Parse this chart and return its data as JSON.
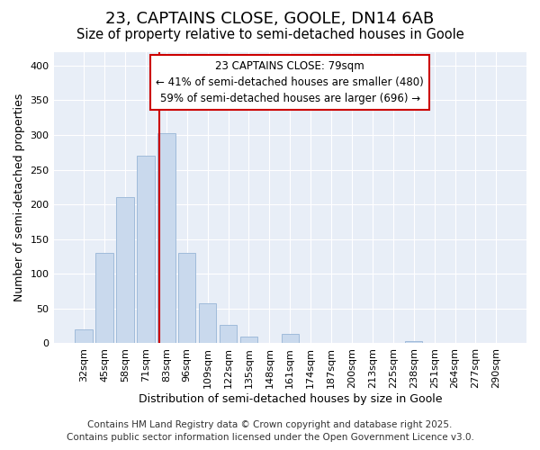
{
  "title": "23, CAPTAINS CLOSE, GOOLE, DN14 6AB",
  "subtitle": "Size of property relative to semi-detached houses in Goole",
  "xlabel": "Distribution of semi-detached houses by size in Goole",
  "ylabel": "Number of semi-detached properties",
  "categories": [
    "32sqm",
    "45sqm",
    "58sqm",
    "71sqm",
    "83sqm",
    "96sqm",
    "109sqm",
    "122sqm",
    "135sqm",
    "148sqm",
    "161sqm",
    "174sqm",
    "187sqm",
    "200sqm",
    "213sqm",
    "225sqm",
    "238sqm",
    "251sqm",
    "264sqm",
    "277sqm",
    "290sqm"
  ],
  "values": [
    20,
    130,
    210,
    270,
    303,
    130,
    57,
    27,
    10,
    0,
    13,
    0,
    0,
    0,
    0,
    0,
    3,
    0,
    0,
    0,
    0
  ],
  "bar_color": "#c9d9ed",
  "bar_edge_color": "#a0bbda",
  "vline_color": "#cc0000",
  "vline_pos": 3.65,
  "annotation_box_text": "23 CAPTAINS CLOSE: 79sqm\n← 41% of semi-detached houses are smaller (480)\n59% of semi-detached houses are larger (696) →",
  "annotation_box_color": "#cc0000",
  "ylim": [
    0,
    420
  ],
  "yticks": [
    0,
    50,
    100,
    150,
    200,
    250,
    300,
    350,
    400
  ],
  "footer_line1": "Contains HM Land Registry data © Crown copyright and database right 2025.",
  "footer_line2": "Contains public sector information licensed under the Open Government Licence v3.0.",
  "plot_bg_color": "#e8eef7",
  "grid_color": "#ffffff",
  "title_fontsize": 13,
  "subtitle_fontsize": 10.5,
  "axis_label_fontsize": 9,
  "tick_fontsize": 8,
  "annotation_fontsize": 8.5,
  "footer_fontsize": 7.5
}
